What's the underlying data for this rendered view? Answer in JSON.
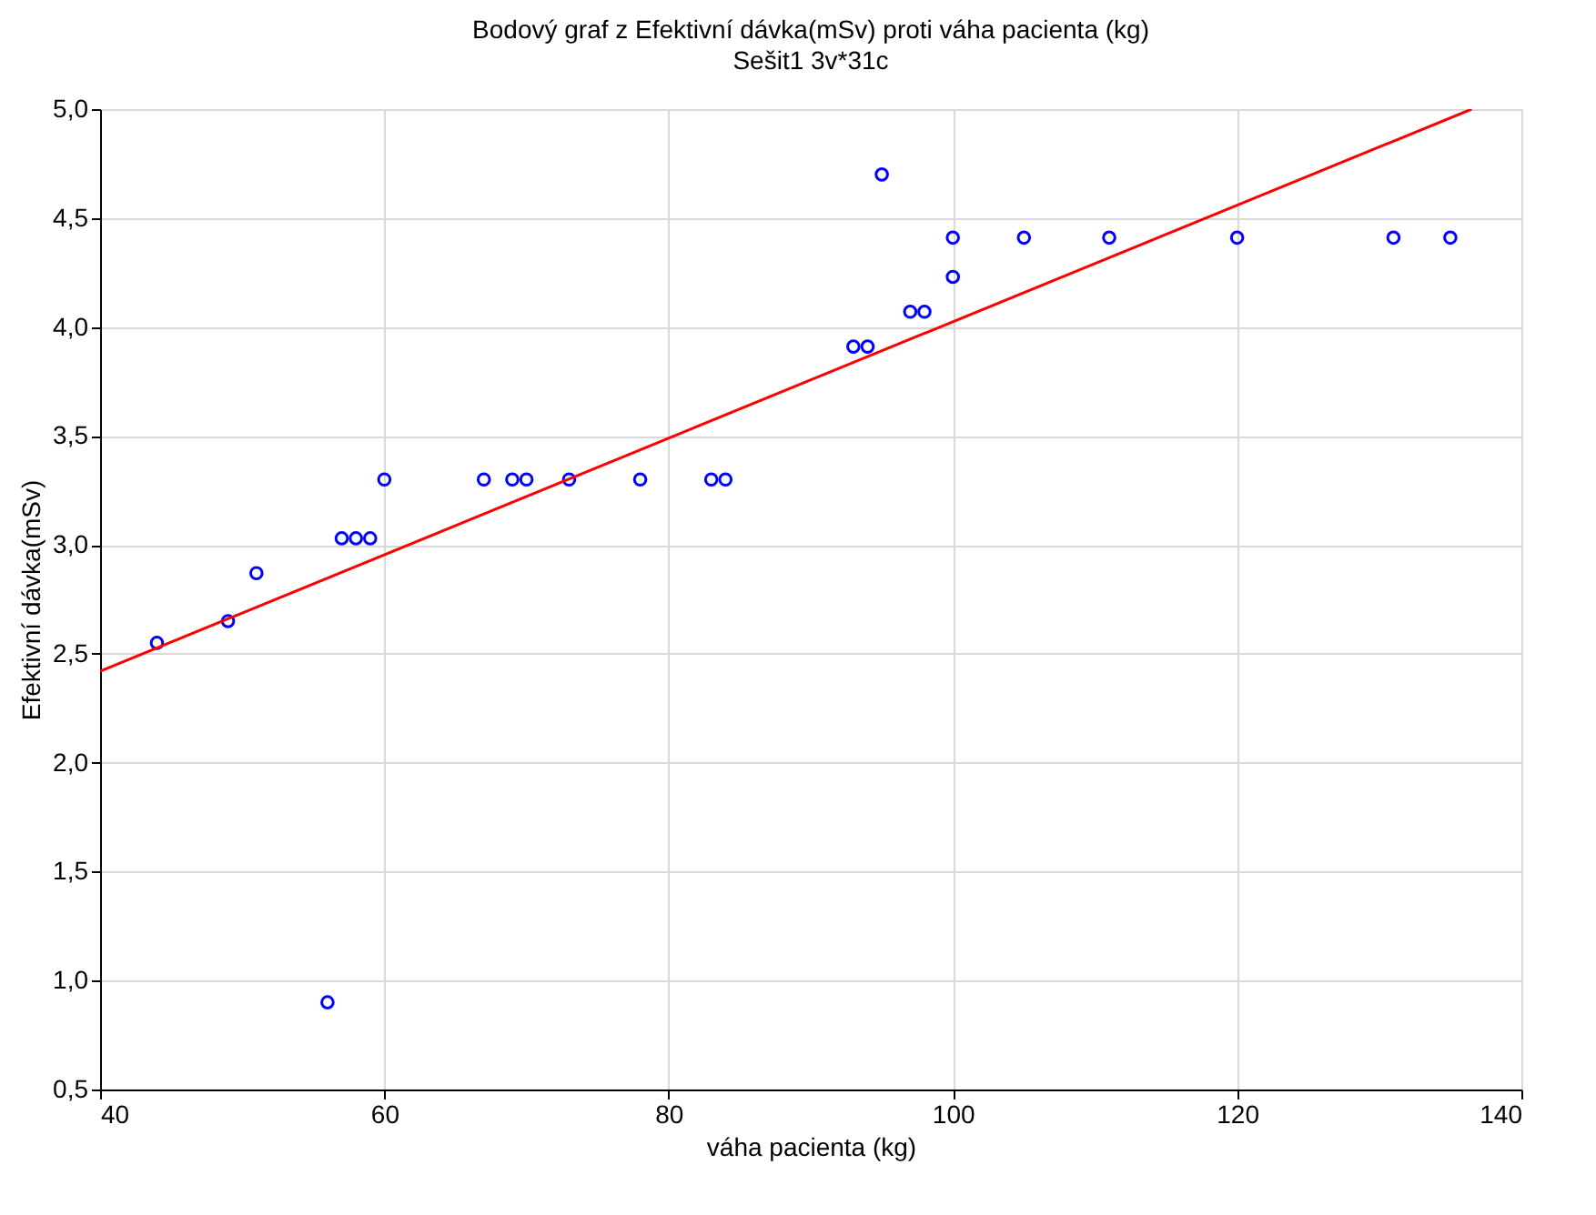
{
  "chart_data": {
    "type": "scatter",
    "title": "Bodový graf z Efektivní dávka(mSv) proti váha pacienta (kg)",
    "subtitle": "Sešit1 3v*31c",
    "xlabel": "váha pacienta (kg)",
    "ylabel": "Efektivní dávka(mSv)",
    "series": [
      {
        "marker": "circle",
        "color": "#0000ff",
        "x": [
          44,
          49,
          51,
          56,
          57,
          58,
          59,
          60,
          67,
          69,
          70,
          73,
          78,
          83,
          84,
          93,
          94,
          95,
          97,
          98,
          100,
          100,
          105,
          111,
          120,
          131,
          135
        ],
        "values": [
          2.55,
          2.65,
          2.87,
          0.9,
          3.03,
          3.03,
          3.03,
          3.3,
          3.3,
          3.3,
          3.3,
          3.3,
          3.3,
          3.3,
          3.3,
          3.91,
          3.91,
          4.7,
          4.07,
          4.07,
          4.23,
          4.41,
          4.41,
          4.41,
          4.41,
          4.41,
          4.41
        ]
      },
      {
        "type": "line",
        "color": "#ff0000",
        "x": [
          40,
          136.5
        ],
        "values": [
          2.42,
          5.0
        ]
      }
    ],
    "xlim": [
      40,
      140
    ],
    "xticks": [
      40,
      60,
      80,
      100,
      120,
      140
    ],
    "ylim": [
      0.5,
      5.0
    ],
    "yticks": [
      {
        "value": 0.5,
        "label": "0,5"
      },
      {
        "value": 1.0,
        "label": "1,0"
      },
      {
        "value": 1.5,
        "label": "1,5"
      },
      {
        "value": 2.0,
        "label": "2,0"
      },
      {
        "value": 2.5,
        "label": "2,5"
      },
      {
        "value": 3.0,
        "label": "3,0"
      },
      {
        "value": 3.5,
        "label": "3,5"
      },
      {
        "value": 4.0,
        "label": "4,0"
      },
      {
        "value": 4.5,
        "label": "4,5"
      },
      {
        "value": 5.0,
        "label": "5,0"
      }
    ],
    "grid": true
  }
}
